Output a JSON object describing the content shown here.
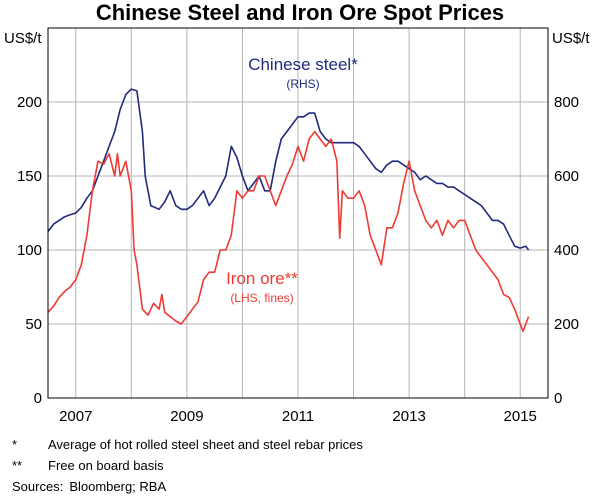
{
  "chart_data": {
    "type": "line",
    "title": "Chinese Steel and Iron Ore Spot Prices",
    "left_axis": {
      "unit": "US$/t",
      "min": 0,
      "max": 250,
      "ticks": [
        0,
        50,
        100,
        150,
        200
      ]
    },
    "right_axis": {
      "unit": "US$/t",
      "min": 0,
      "max": 1000,
      "ticks": [
        0,
        200,
        400,
        600,
        800
      ]
    },
    "x_range": [
      2006.5,
      2015.5
    ],
    "x_ticks": [
      2007,
      2009,
      2011,
      2013,
      2015
    ],
    "grid": true,
    "series": [
      {
        "name": "Chinese steel*",
        "sublabel": "(RHS)",
        "axis": "right",
        "color": "#1f2a7c",
        "x": [
          2006.5,
          2006.6,
          2006.7,
          2006.8,
          2006.9,
          2007.0,
          2007.1,
          2007.2,
          2007.3,
          2007.4,
          2007.5,
          2007.6,
          2007.7,
          2007.8,
          2007.9,
          2008.0,
          2008.1,
          2008.2,
          2008.25,
          2008.35,
          2008.5,
          2008.6,
          2008.7,
          2008.8,
          2008.9,
          2009.0,
          2009.1,
          2009.2,
          2009.3,
          2009.4,
          2009.5,
          2009.6,
          2009.7,
          2009.8,
          2009.9,
          2010.0,
          2010.1,
          2010.2,
          2010.3,
          2010.4,
          2010.5,
          2010.6,
          2010.7,
          2010.8,
          2010.9,
          2011.0,
          2011.1,
          2011.2,
          2011.3,
          2011.4,
          2011.5,
          2011.6,
          2011.7,
          2011.8,
          2011.9,
          2012.0,
          2012.1,
          2012.2,
          2012.3,
          2012.4,
          2012.5,
          2012.6,
          2012.7,
          2012.8,
          2012.9,
          2013.0,
          2013.1,
          2013.2,
          2013.3,
          2013.4,
          2013.5,
          2013.6,
          2013.7,
          2013.8,
          2013.9,
          2014.0,
          2014.1,
          2014.2,
          2014.3,
          2014.4,
          2014.5,
          2014.6,
          2014.7,
          2014.8,
          2014.9,
          2015.0,
          2015.1,
          2015.15
        ],
        "values": [
          450,
          470,
          480,
          490,
          495,
          500,
          515,
          540,
          560,
          600,
          640,
          680,
          720,
          780,
          820,
          835,
          830,
          720,
          600,
          520,
          510,
          530,
          560,
          520,
          510,
          510,
          520,
          540,
          560,
          520,
          540,
          570,
          600,
          680,
          650,
          600,
          560,
          580,
          600,
          560,
          560,
          640,
          700,
          720,
          740,
          760,
          760,
          770,
          770,
          720,
          700,
          690,
          690,
          690,
          690,
          690,
          680,
          660,
          640,
          620,
          610,
          630,
          640,
          640,
          630,
          620,
          610,
          590,
          600,
          590,
          580,
          580,
          570,
          570,
          560,
          550,
          540,
          530,
          520,
          500,
          480,
          480,
          470,
          440,
          410,
          405,
          410,
          400
        ]
      },
      {
        "name": "Iron ore**",
        "sublabel": "(LHS, fines)",
        "axis": "left",
        "color": "#ee3a33",
        "x": [
          2006.5,
          2006.6,
          2006.7,
          2006.8,
          2006.9,
          2007.0,
          2007.1,
          2007.2,
          2007.3,
          2007.4,
          2007.5,
          2007.6,
          2007.7,
          2007.75,
          2007.8,
          2007.9,
          2008.0,
          2008.05,
          2008.1,
          2008.2,
          2008.3,
          2008.4,
          2008.5,
          2008.55,
          2008.6,
          2008.7,
          2008.8,
          2008.9,
          2009.0,
          2009.1,
          2009.2,
          2009.3,
          2009.4,
          2009.5,
          2009.6,
          2009.7,
          2009.8,
          2009.9,
          2010.0,
          2010.1,
          2010.2,
          2010.3,
          2010.4,
          2010.5,
          2010.6,
          2010.7,
          2010.8,
          2010.9,
          2011.0,
          2011.1,
          2011.2,
          2011.3,
          2011.4,
          2011.5,
          2011.6,
          2011.7,
          2011.75,
          2011.8,
          2011.9,
          2012.0,
          2012.1,
          2012.2,
          2012.3,
          2012.4,
          2012.5,
          2012.6,
          2012.7,
          2012.8,
          2012.9,
          2013.0,
          2013.1,
          2013.2,
          2013.3,
          2013.4,
          2013.5,
          2013.6,
          2013.7,
          2013.8,
          2013.9,
          2014.0,
          2014.1,
          2014.2,
          2014.3,
          2014.4,
          2014.5,
          2014.6,
          2014.7,
          2014.8,
          2014.9,
          2015.0,
          2015.05,
          2015.1,
          2015.15
        ],
        "values": [
          58,
          62,
          68,
          72,
          75,
          80,
          90,
          110,
          140,
          160,
          158,
          165,
          150,
          165,
          150,
          160,
          140,
          100,
          90,
          60,
          56,
          64,
          60,
          70,
          58,
          55,
          52,
          50,
          55,
          60,
          65,
          80,
          85,
          85,
          100,
          100,
          110,
          140,
          135,
          140,
          140,
          150,
          150,
          140,
          130,
          140,
          150,
          158,
          170,
          160,
          175,
          180,
          175,
          170,
          175,
          160,
          108,
          140,
          135,
          135,
          140,
          130,
          110,
          100,
          90,
          115,
          115,
          125,
          145,
          160,
          140,
          130,
          120,
          115,
          120,
          110,
          120,
          115,
          120,
          120,
          110,
          100,
          95,
          90,
          85,
          80,
          70,
          68,
          60,
          50,
          45,
          50,
          55
        ]
      }
    ],
    "x_tick_labels": [
      "2007",
      "2009",
      "2011",
      "2013",
      "2015"
    ]
  },
  "notes": [
    {
      "mark": "*",
      "text": "Average of hot rolled steel sheet and steel rebar prices"
    },
    {
      "mark": "**",
      "text": "Free on board basis"
    }
  ],
  "sources": {
    "label": "Sources:",
    "text": "Bloomberg; RBA"
  }
}
